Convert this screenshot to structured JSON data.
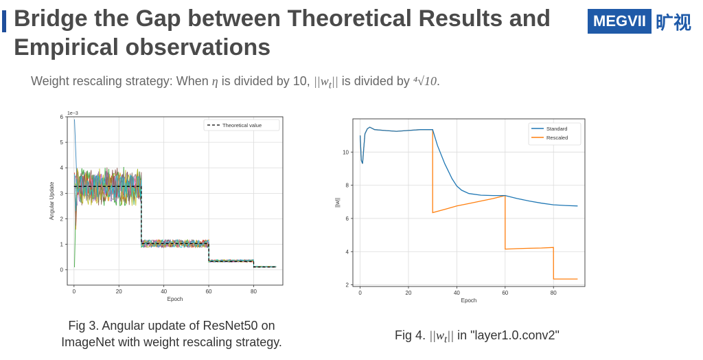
{
  "slide": {
    "title": "Bridge the Gap between Theoretical Results and Empirical observations",
    "logo_text": "MEGVII",
    "logo_cn": "旷视",
    "subtitle_parts": [
      "Weight rescaling strategy: When ",
      "η",
      " is divided by 10, ",
      "||w",
      "t",
      "||",
      " is divided by ",
      "⁴√10",
      "."
    ]
  },
  "captions": {
    "fig3_line1": "Fig 3. Angular update of ResNet50 on",
    "fig3_line2": "ImageNet with weight rescaling strategy.",
    "fig4_prefix": "Fig 4. ",
    "fig4_norm": "||w",
    "fig4_sub": "t",
    "fig4_norm_end": "||",
    "fig4_suffix": " in \"layer1.0.conv2\""
  },
  "chart_data": [
    {
      "type": "line",
      "title": "",
      "xlabel": "Epoch",
      "ylabel": "Angular Update",
      "y_scale_label": "1e−3",
      "xlim": [
        -3,
        93
      ],
      "ylim": [
        -0.6,
        6
      ],
      "xticks": [
        0,
        20,
        40,
        60,
        80
      ],
      "yticks": [
        0,
        1,
        2,
        3,
        4,
        5,
        6
      ],
      "grid": true,
      "legend": {
        "position": "top-right",
        "entries": [
          "Theoretical value"
        ]
      },
      "theoretical": {
        "x": [
          0,
          30,
          30,
          60,
          60,
          80,
          80,
          90
        ],
        "y": [
          3.27,
          3.27,
          1.03,
          1.03,
          0.33,
          0.33,
          0.11,
          0.11
        ],
        "style": "dashed"
      },
      "stages": [
        {
          "x0": 1,
          "x1": 30,
          "mean": 3.27,
          "spread": 0.45
        },
        {
          "x0": 30,
          "x1": 60,
          "mean": 1.03,
          "spread": 0.15
        },
        {
          "x0": 60,
          "x1": 80,
          "mean": 0.35,
          "spread": 0.05
        },
        {
          "x0": 80,
          "x1": 90,
          "mean": 0.12,
          "spread": 0.02
        }
      ],
      "series_colors": [
        "#1f77b4",
        "#ff7f0e",
        "#2ca02c",
        "#d62728",
        "#9467bd",
        "#8c564b",
        "#e377c2",
        "#7f7f7f",
        "#bcbd22",
        "#17becf"
      ]
    },
    {
      "type": "line",
      "title": "",
      "xlabel": "Epoch",
      "ylabel": "||w||",
      "xlim": [
        -3,
        93
      ],
      "ylim": [
        1.9,
        12
      ],
      "xticks": [
        0,
        20,
        40,
        60,
        80
      ],
      "yticks": [
        2,
        4,
        6,
        8,
        10
      ],
      "grid": true,
      "legend": {
        "position": "top-right",
        "entries": [
          "Standard",
          "Rescaled"
        ]
      },
      "series": [
        {
          "name": "Standard",
          "color": "#1f77b4",
          "x": [
            0,
            0.5,
            1,
            1.5,
            2,
            3,
            4,
            6,
            10,
            15,
            20,
            25,
            30,
            32,
            35,
            38,
            40,
            42,
            45,
            50,
            55,
            60,
            65,
            70,
            75,
            80,
            85,
            90
          ],
          "y": [
            11.0,
            9.5,
            9.3,
            10.2,
            11.1,
            11.4,
            11.5,
            11.35,
            11.3,
            11.25,
            11.3,
            11.35,
            11.35,
            10.4,
            9.3,
            8.4,
            7.95,
            7.7,
            7.5,
            7.4,
            7.38,
            7.38,
            7.2,
            7.05,
            6.92,
            6.82,
            6.78,
            6.75
          ]
        },
        {
          "name": "Rescaled",
          "color": "#ff7f0e",
          "x": [
            0,
            0.5,
            1,
            1.5,
            2,
            3,
            4,
            6,
            10,
            15,
            20,
            25,
            30,
            30.01,
            35,
            40,
            45,
            50,
            55,
            60,
            60.01,
            65,
            70,
            75,
            80,
            80.01,
            85,
            90
          ],
          "y": [
            11.0,
            9.5,
            9.3,
            10.2,
            11.1,
            11.4,
            11.5,
            11.35,
            11.3,
            11.25,
            11.3,
            11.35,
            11.35,
            6.35,
            6.55,
            6.75,
            6.9,
            7.05,
            7.2,
            7.38,
            4.15,
            4.18,
            4.2,
            4.22,
            4.25,
            2.35,
            2.35,
            2.35
          ]
        }
      ]
    }
  ]
}
